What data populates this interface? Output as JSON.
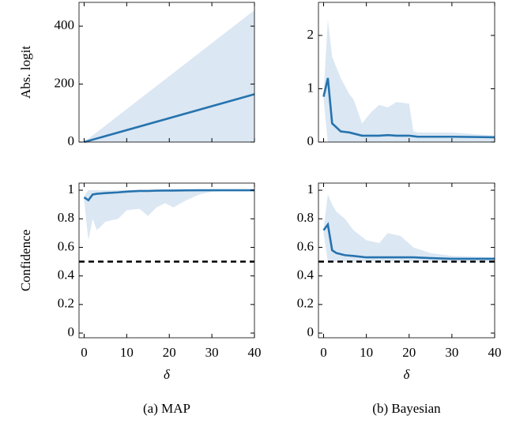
{
  "chart_data": [
    {
      "type": "band-line",
      "ylabel": "Abs. logit",
      "show_xticklabels": false,
      "x": [
        0,
        40
      ],
      "values": [
        0,
        165
      ],
      "lower": [
        0,
        0
      ],
      "upper": [
        0,
        455
      ],
      "xlim": [
        -1.2,
        40
      ],
      "xticks": [
        0,
        10,
        20,
        30,
        40
      ],
      "ylim": [
        0,
        482
      ],
      "yticks": [
        0,
        200,
        400
      ],
      "color": "#2673ae",
      "band_color": "#dbe7f3"
    },
    {
      "type": "band-line",
      "show_xticklabels": false,
      "x": [
        0,
        1,
        2,
        4,
        6,
        7,
        9,
        11,
        13,
        15,
        17,
        20,
        21,
        22,
        30,
        40
      ],
      "values": [
        0.85,
        1.2,
        0.35,
        0.2,
        0.18,
        0.16,
        0.12,
        0.12,
        0.12,
        0.13,
        0.12,
        0.12,
        0.11,
        0.1,
        0.1,
        0.09
      ],
      "lower": [
        0.8,
        0,
        0,
        0,
        0,
        0,
        0,
        0,
        0,
        0,
        0,
        0,
        0,
        0,
        0,
        0
      ],
      "upper": [
        0.9,
        2.3,
        1.6,
        1.2,
        0.9,
        0.8,
        0.35,
        0.55,
        0.7,
        0.65,
        0.75,
        0.72,
        0.2,
        0.18,
        0.18,
        0.12
      ],
      "xlim": [
        -1.2,
        40
      ],
      "xticks": [
        0,
        10,
        20,
        30,
        40
      ],
      "ylim": [
        0,
        2.62
      ],
      "yticks": [
        0,
        1,
        2
      ],
      "color": "#2673ae",
      "band_color": "#dbe7f3"
    },
    {
      "type": "band-line",
      "ylabel": "Confidence",
      "xlabel": "δ",
      "show_xticklabels": true,
      "caption": "(a) MAP",
      "x": [
        0,
        1,
        2,
        3,
        5,
        8,
        10,
        13,
        15,
        17,
        19,
        21,
        24,
        27,
        30,
        40
      ],
      "values": [
        0.95,
        0.93,
        0.97,
        0.975,
        0.98,
        0.985,
        0.99,
        0.995,
        0.995,
        0.997,
        0.998,
        0.998,
        0.999,
        1,
        1,
        1
      ],
      "lower": [
        0.93,
        0.65,
        0.8,
        0.72,
        0.78,
        0.8,
        0.86,
        0.87,
        0.82,
        0.88,
        0.91,
        0.88,
        0.93,
        0.97,
        0.99,
        1
      ],
      "upper": [
        0.96,
        1,
        1,
        1,
        1,
        1,
        1,
        1,
        1,
        1,
        1,
        1,
        1,
        1,
        1,
        1
      ],
      "hline": 0.5,
      "xlim": [
        -1.2,
        40
      ],
      "xticks": [
        0,
        10,
        20,
        30,
        40
      ],
      "ylim": [
        -0.033,
        1.05
      ],
      "yticks": [
        0,
        0.2,
        0.4,
        0.6,
        0.8,
        1
      ],
      "color": "#2673ae",
      "band_color": "#dbe7f3"
    },
    {
      "type": "band-line",
      "xlabel": "δ",
      "show_xticklabels": true,
      "caption": "(b) Bayesian",
      "x": [
        0,
        1,
        2,
        3,
        5,
        7,
        10,
        13,
        15,
        18,
        21,
        25,
        30,
        40
      ],
      "values": [
        0.72,
        0.76,
        0.58,
        0.56,
        0.545,
        0.54,
        0.53,
        0.53,
        0.53,
        0.53,
        0.53,
        0.525,
        0.52,
        0.52
      ],
      "lower": [
        0.7,
        0.5,
        0.5,
        0.5,
        0.5,
        0.5,
        0.5,
        0.5,
        0.5,
        0.5,
        0.5,
        0.5,
        0.5,
        0.5
      ],
      "upper": [
        0.73,
        0.97,
        0.9,
        0.85,
        0.8,
        0.72,
        0.65,
        0.63,
        0.7,
        0.68,
        0.6,
        0.56,
        0.54,
        0.53
      ],
      "hline": 0.5,
      "xlim": [
        -1.2,
        40
      ],
      "xticks": [
        0,
        10,
        20,
        30,
        40
      ],
      "ylim": [
        -0.033,
        1.05
      ],
      "yticks": [
        0,
        0.2,
        0.4,
        0.6,
        0.8,
        1
      ],
      "color": "#2673ae",
      "band_color": "#dbe7f3"
    }
  ]
}
